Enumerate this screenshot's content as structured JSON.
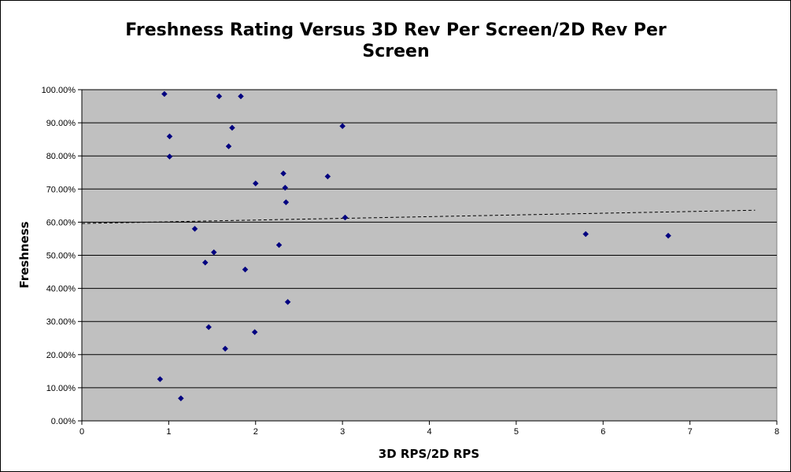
{
  "chart_data": {
    "type": "scatter",
    "title_line1": "Freshness Rating Versus 3D Rev Per Screen/2D Rev Per",
    "title_line2": "Screen",
    "xlabel": "3D RPS/2D RPS",
    "ylabel": "Freshness",
    "xlim": [
      0,
      8
    ],
    "ylim": [
      0,
      1
    ],
    "x_ticks": [
      "0",
      "1",
      "2",
      "3",
      "4",
      "5",
      "6",
      "7",
      "8"
    ],
    "y_ticks": [
      "0.00%",
      "10.00%",
      "20.00%",
      "30.00%",
      "40.00%",
      "50.00%",
      "60.00%",
      "70.00%",
      "80.00%",
      "90.00%",
      "100.00%"
    ],
    "grid": "horizontal",
    "plot_background": "#c0c0c0",
    "marker_color": "#000080",
    "points": [
      {
        "x": 0.95,
        "y": 0.987
      },
      {
        "x": 1.01,
        "y": 0.859
      },
      {
        "x": 1.01,
        "y": 0.798
      },
      {
        "x": 0.9,
        "y": 0.126
      },
      {
        "x": 1.14,
        "y": 0.068
      },
      {
        "x": 1.3,
        "y": 0.58
      },
      {
        "x": 1.42,
        "y": 0.478
      },
      {
        "x": 1.46,
        "y": 0.283
      },
      {
        "x": 1.52,
        "y": 0.509
      },
      {
        "x": 1.58,
        "y": 0.98
      },
      {
        "x": 1.65,
        "y": 0.218
      },
      {
        "x": 1.69,
        "y": 0.829
      },
      {
        "x": 1.73,
        "y": 0.885
      },
      {
        "x": 1.83,
        "y": 0.98
      },
      {
        "x": 1.88,
        "y": 0.457
      },
      {
        "x": 1.99,
        "y": 0.268
      },
      {
        "x": 2.0,
        "y": 0.717
      },
      {
        "x": 2.27,
        "y": 0.531
      },
      {
        "x": 2.32,
        "y": 0.747
      },
      {
        "x": 2.34,
        "y": 0.704
      },
      {
        "x": 2.35,
        "y": 0.66
      },
      {
        "x": 2.37,
        "y": 0.359
      },
      {
        "x": 2.83,
        "y": 0.738
      },
      {
        "x": 3.0,
        "y": 0.89
      },
      {
        "x": 3.03,
        "y": 0.614
      },
      {
        "x": 5.8,
        "y": 0.564
      },
      {
        "x": 6.75,
        "y": 0.559
      }
    ],
    "trendline": {
      "x": [
        0,
        7.75
      ],
      "y": [
        0.596,
        0.636
      ],
      "style": "dashed"
    }
  }
}
